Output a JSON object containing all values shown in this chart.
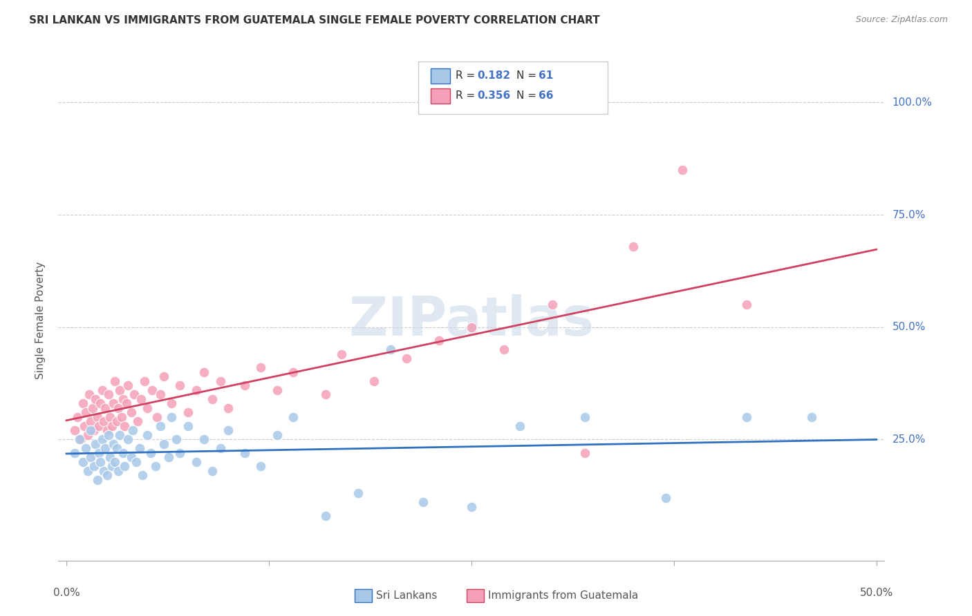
{
  "title": "SRI LANKAN VS IMMIGRANTS FROM GUATEMALA SINGLE FEMALE POVERTY CORRELATION CHART",
  "source": "Source: ZipAtlas.com",
  "ylabel": "Single Female Poverty",
  "xlim": [
    0.0,
    0.5
  ],
  "ylim": [
    0.0,
    1.0
  ],
  "sri_lankan_R": 0.182,
  "sri_lankan_N": 61,
  "guatemala_R": 0.356,
  "guatemala_N": 66,
  "sri_lankan_color": "#a8c8e8",
  "guatemala_color": "#f4a0b8",
  "line_sri_lankan_color": "#3070c0",
  "line_guatemala_color": "#d04060",
  "background_color": "#ffffff",
  "watermark": "ZIPatlas",
  "sri_lankan_x": [
    0.005,
    0.008,
    0.01,
    0.012,
    0.013,
    0.015,
    0.015,
    0.017,
    0.018,
    0.019,
    0.02,
    0.021,
    0.022,
    0.023,
    0.024,
    0.025,
    0.026,
    0.027,
    0.028,
    0.029,
    0.03,
    0.031,
    0.032,
    0.033,
    0.035,
    0.036,
    0.038,
    0.04,
    0.041,
    0.043,
    0.045,
    0.047,
    0.05,
    0.052,
    0.055,
    0.058,
    0.06,
    0.063,
    0.065,
    0.068,
    0.07,
    0.075,
    0.08,
    0.085,
    0.09,
    0.095,
    0.1,
    0.11,
    0.12,
    0.13,
    0.14,
    0.16,
    0.18,
    0.2,
    0.22,
    0.25,
    0.28,
    0.32,
    0.37,
    0.42,
    0.46
  ],
  "sri_lankan_y": [
    0.22,
    0.25,
    0.2,
    0.23,
    0.18,
    0.21,
    0.27,
    0.19,
    0.24,
    0.16,
    0.22,
    0.2,
    0.25,
    0.18,
    0.23,
    0.17,
    0.26,
    0.21,
    0.19,
    0.24,
    0.2,
    0.23,
    0.18,
    0.26,
    0.22,
    0.19,
    0.25,
    0.21,
    0.27,
    0.2,
    0.23,
    0.17,
    0.26,
    0.22,
    0.19,
    0.28,
    0.24,
    0.21,
    0.3,
    0.25,
    0.22,
    0.28,
    0.2,
    0.25,
    0.18,
    0.23,
    0.27,
    0.22,
    0.19,
    0.26,
    0.3,
    0.08,
    0.13,
    0.45,
    0.11,
    0.1,
    0.28,
    0.3,
    0.12,
    0.3,
    0.3
  ],
  "guatemala_x": [
    0.005,
    0.007,
    0.009,
    0.01,
    0.011,
    0.012,
    0.013,
    0.014,
    0.015,
    0.016,
    0.017,
    0.018,
    0.019,
    0.02,
    0.021,
    0.022,
    0.023,
    0.024,
    0.025,
    0.026,
    0.027,
    0.028,
    0.029,
    0.03,
    0.031,
    0.032,
    0.033,
    0.034,
    0.035,
    0.036,
    0.037,
    0.038,
    0.04,
    0.042,
    0.044,
    0.046,
    0.048,
    0.05,
    0.053,
    0.056,
    0.058,
    0.06,
    0.065,
    0.07,
    0.075,
    0.08,
    0.085,
    0.09,
    0.095,
    0.1,
    0.11,
    0.12,
    0.13,
    0.14,
    0.16,
    0.17,
    0.19,
    0.21,
    0.23,
    0.25,
    0.27,
    0.3,
    0.32,
    0.35,
    0.38,
    0.42
  ],
  "guatemala_y": [
    0.27,
    0.3,
    0.25,
    0.33,
    0.28,
    0.31,
    0.26,
    0.35,
    0.29,
    0.32,
    0.27,
    0.34,
    0.3,
    0.28,
    0.33,
    0.36,
    0.29,
    0.32,
    0.27,
    0.35,
    0.3,
    0.28,
    0.33,
    0.38,
    0.29,
    0.32,
    0.36,
    0.3,
    0.34,
    0.28,
    0.33,
    0.37,
    0.31,
    0.35,
    0.29,
    0.34,
    0.38,
    0.32,
    0.36,
    0.3,
    0.35,
    0.39,
    0.33,
    0.37,
    0.31,
    0.36,
    0.4,
    0.34,
    0.38,
    0.32,
    0.37,
    0.41,
    0.36,
    0.4,
    0.35,
    0.44,
    0.38,
    0.43,
    0.47,
    0.5,
    0.45,
    0.55,
    0.22,
    0.68,
    0.85,
    0.55
  ],
  "legend_sri_lankan": "Sri Lankans",
  "legend_guatemala": "Immigrants from Guatemala"
}
